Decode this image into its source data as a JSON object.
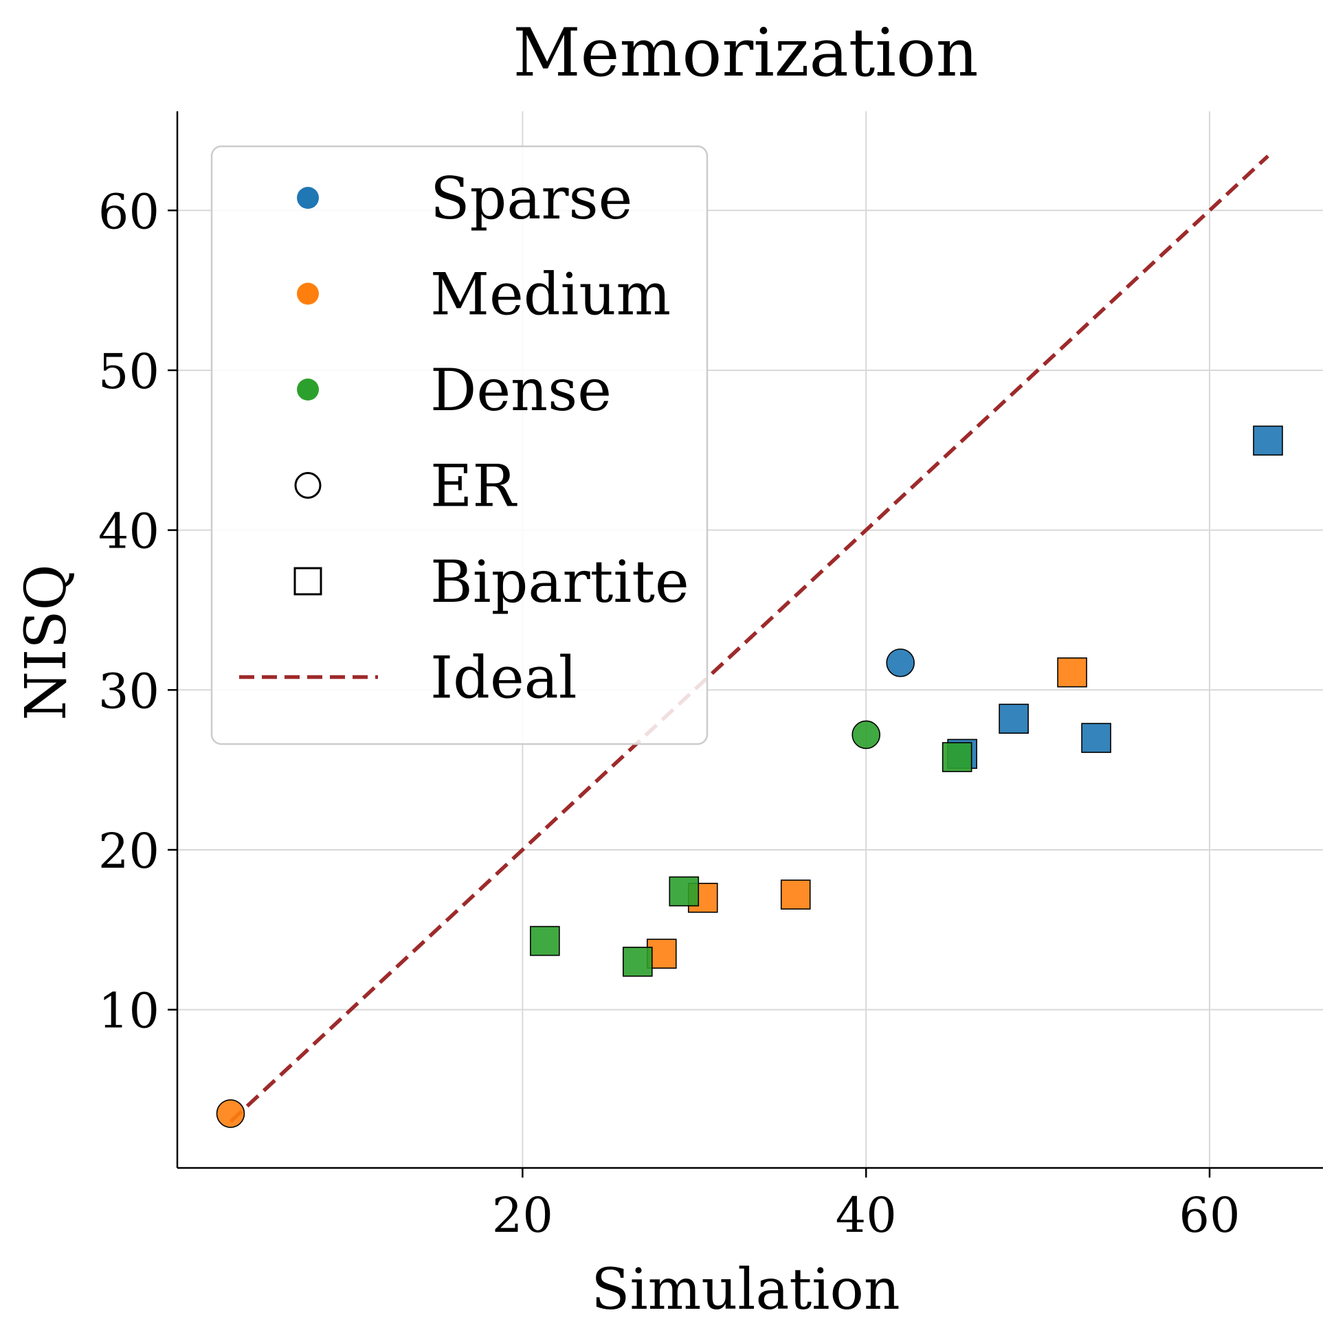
{
  "chart_data": {
    "type": "scatter",
    "title": "Memorization",
    "xlabel": "Simulation",
    "ylabel": "NISQ",
    "xlim": [
      -0.1,
      66.6
    ],
    "ylim": [
      0.1,
      66.2
    ],
    "xticks": [
      20,
      40,
      60
    ],
    "yticks": [
      10,
      20,
      30,
      40,
      50,
      60
    ],
    "grid": true,
    "legend_position": "upper-left",
    "series": [
      {
        "name": "Sparse",
        "color": "#1f77b4",
        "marker": "square",
        "graph": "Bipartite",
        "x": [
          45.6,
          48.6,
          53.4,
          63.4
        ],
        "y": [
          26.0,
          28.2,
          27.0,
          45.6
        ]
      },
      {
        "name": "Sparse",
        "color": "#1f77b4",
        "marker": "circle",
        "graph": "ER",
        "x": [
          42.0
        ],
        "y": [
          31.7
        ]
      },
      {
        "name": "Medium",
        "color": "#ff7f0e",
        "marker": "square",
        "graph": "Bipartite",
        "x": [
          28.1,
          30.5,
          35.9,
          52.0
        ],
        "y": [
          13.5,
          17.0,
          17.2,
          31.1
        ]
      },
      {
        "name": "Medium",
        "color": "#ff7f0e",
        "marker": "circle",
        "graph": "ER",
        "x": [
          3.0
        ],
        "y": [
          3.5
        ]
      },
      {
        "name": "Dense",
        "color": "#2ca02c",
        "marker": "square",
        "graph": "Bipartite",
        "x": [
          21.3,
          26.7,
          29.4,
          45.3
        ],
        "y": [
          14.3,
          13.0,
          17.4,
          25.8
        ]
      },
      {
        "name": "Dense",
        "color": "#2ca02c",
        "marker": "circle",
        "graph": "ER",
        "x": [
          40.0
        ],
        "y": [
          27.2
        ]
      }
    ],
    "ideal_line": {
      "name": "Ideal",
      "color": "#9e2a2b",
      "style": "dashed",
      "x": [
        3.0,
        63.4
      ],
      "y": [
        3.0,
        63.4
      ]
    },
    "legend": [
      {
        "label": "Sparse",
        "kind": "color-dot",
        "color": "#1f77b4"
      },
      {
        "label": "Medium",
        "kind": "color-dot",
        "color": "#ff7f0e"
      },
      {
        "label": "Dense",
        "kind": "color-dot",
        "color": "#2ca02c"
      },
      {
        "label": "ER",
        "kind": "open-circle",
        "color": "#000000"
      },
      {
        "label": "Bipartite",
        "kind": "open-square",
        "color": "#000000"
      },
      {
        "label": "Ideal",
        "kind": "dashed-line",
        "color": "#9e2a2b"
      }
    ]
  }
}
